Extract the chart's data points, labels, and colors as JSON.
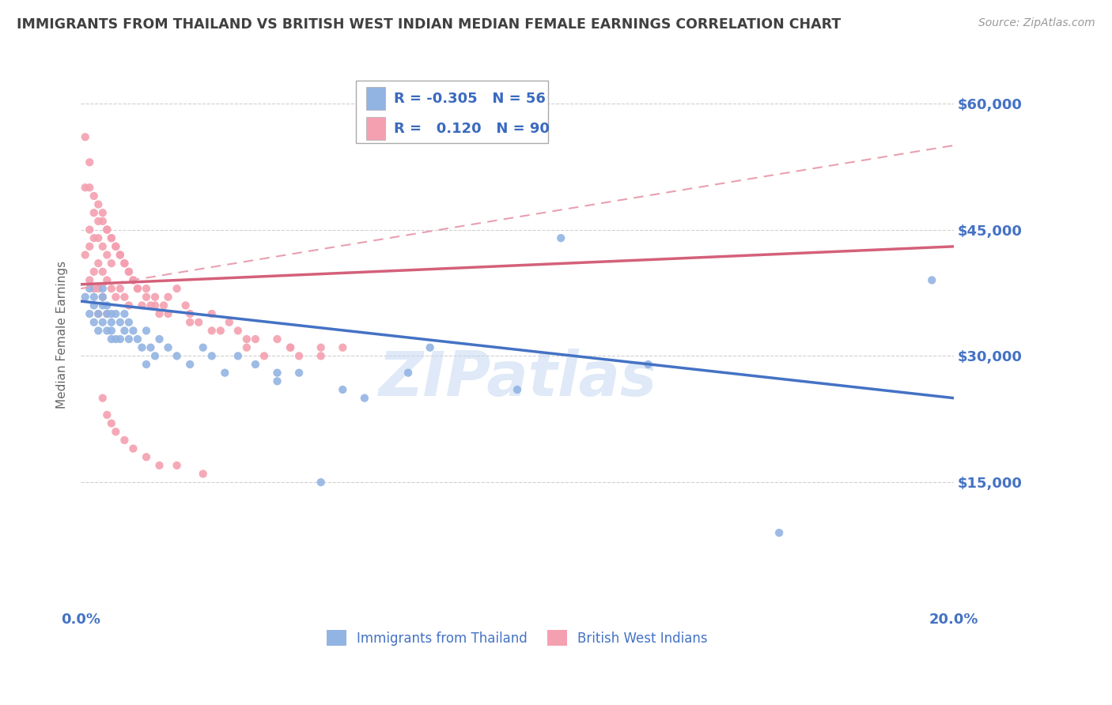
{
  "title": "IMMIGRANTS FROM THAILAND VS BRITISH WEST INDIAN MEDIAN FEMALE EARNINGS CORRELATION CHART",
  "source": "Source: ZipAtlas.com",
  "ylabel": "Median Female Earnings",
  "xlim": [
    0.0,
    0.2
  ],
  "ylim": [
    0,
    65000
  ],
  "yticks": [
    0,
    15000,
    30000,
    45000,
    60000
  ],
  "ytick_labels": [
    "",
    "$15,000",
    "$30,000",
    "$45,000",
    "$60,000"
  ],
  "xticks": [
    0.0,
    0.05,
    0.1,
    0.15,
    0.2
  ],
  "xtick_labels": [
    "0.0%",
    "",
    "",
    "",
    "20.0%"
  ],
  "watermark": "ZIPatlas",
  "legend_R1": "-0.305",
  "legend_N1": "56",
  "legend_R2": "0.120",
  "legend_N2": "90",
  "series1_color": "#92b4e3",
  "series2_color": "#f4a0b0",
  "line1_color": "#4472c4",
  "line2_color": "#d4607a",
  "line2_dashed_color": "#e8a0b0",
  "axis_color": "#4472c4",
  "grid_color": "#d0d0d0",
  "title_color": "#404040",
  "thailand_x": [
    0.001,
    0.002,
    0.002,
    0.003,
    0.003,
    0.003,
    0.004,
    0.004,
    0.005,
    0.005,
    0.005,
    0.005,
    0.006,
    0.006,
    0.006,
    0.007,
    0.007,
    0.007,
    0.007,
    0.008,
    0.008,
    0.009,
    0.009,
    0.01,
    0.01,
    0.011,
    0.011,
    0.012,
    0.013,
    0.014,
    0.015,
    0.015,
    0.016,
    0.017,
    0.018,
    0.02,
    0.022,
    0.025,
    0.028,
    0.03,
    0.033,
    0.036,
    0.04,
    0.045,
    0.05,
    0.06,
    0.075,
    0.1,
    0.13,
    0.16,
    0.045,
    0.055,
    0.065,
    0.08,
    0.11,
    0.195
  ],
  "thailand_y": [
    37000,
    38000,
    35000,
    37000,
    34000,
    36000,
    35000,
    33000,
    38000,
    36000,
    34000,
    37000,
    35000,
    33000,
    36000,
    34000,
    32000,
    35000,
    33000,
    35000,
    32000,
    34000,
    32000,
    35000,
    33000,
    34000,
    32000,
    33000,
    32000,
    31000,
    33000,
    29000,
    31000,
    30000,
    32000,
    31000,
    30000,
    29000,
    31000,
    30000,
    28000,
    30000,
    29000,
    28000,
    28000,
    26000,
    28000,
    26000,
    29000,
    9000,
    27000,
    15000,
    25000,
    31000,
    44000,
    39000
  ],
  "bwi_x": [
    0.001,
    0.001,
    0.001,
    0.002,
    0.002,
    0.002,
    0.002,
    0.003,
    0.003,
    0.003,
    0.003,
    0.004,
    0.004,
    0.004,
    0.004,
    0.004,
    0.005,
    0.005,
    0.005,
    0.005,
    0.006,
    0.006,
    0.006,
    0.006,
    0.007,
    0.007,
    0.007,
    0.008,
    0.008,
    0.009,
    0.009,
    0.01,
    0.01,
    0.011,
    0.011,
    0.012,
    0.013,
    0.014,
    0.015,
    0.016,
    0.017,
    0.018,
    0.019,
    0.02,
    0.022,
    0.024,
    0.025,
    0.027,
    0.03,
    0.032,
    0.034,
    0.036,
    0.038,
    0.04,
    0.042,
    0.045,
    0.048,
    0.05,
    0.055,
    0.06,
    0.002,
    0.003,
    0.004,
    0.005,
    0.006,
    0.007,
    0.008,
    0.009,
    0.01,
    0.011,
    0.012,
    0.013,
    0.015,
    0.017,
    0.02,
    0.025,
    0.03,
    0.038,
    0.048,
    0.055,
    0.005,
    0.006,
    0.007,
    0.008,
    0.01,
    0.012,
    0.015,
    0.018,
    0.022,
    0.028
  ],
  "bwi_y": [
    42000,
    50000,
    56000,
    50000,
    45000,
    43000,
    39000,
    47000,
    44000,
    40000,
    38000,
    48000,
    44000,
    41000,
    38000,
    35000,
    46000,
    43000,
    40000,
    37000,
    45000,
    42000,
    39000,
    35000,
    44000,
    41000,
    38000,
    43000,
    37000,
    42000,
    38000,
    41000,
    37000,
    40000,
    36000,
    39000,
    38000,
    36000,
    38000,
    36000,
    37000,
    35000,
    36000,
    37000,
    38000,
    36000,
    35000,
    34000,
    35000,
    33000,
    34000,
    33000,
    31000,
    32000,
    30000,
    32000,
    31000,
    30000,
    31000,
    31000,
    53000,
    49000,
    46000,
    47000,
    45000,
    44000,
    43000,
    42000,
    41000,
    40000,
    39000,
    38000,
    37000,
    36000,
    35000,
    34000,
    33000,
    32000,
    31000,
    30000,
    25000,
    23000,
    22000,
    21000,
    20000,
    19000,
    18000,
    17000,
    17000,
    16000
  ]
}
